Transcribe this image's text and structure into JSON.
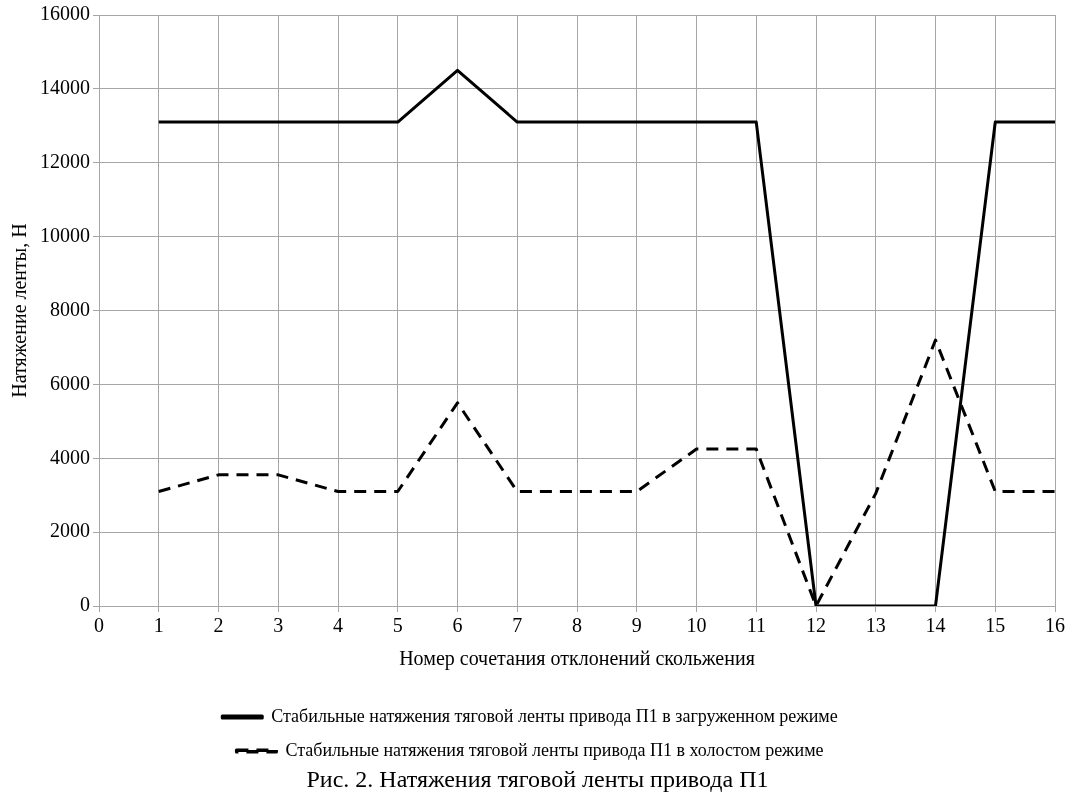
{
  "chart_data": {
    "type": "line",
    "title": "Рис. 2. Натяжения тяговой ленты привода П1",
    "xlabel": "Номер сочетания отклонений скольжения",
    "ylabel": "Натяжение ленты, Н",
    "x": [
      1,
      2,
      3,
      4,
      5,
      6,
      7,
      8,
      9,
      10,
      11,
      12,
      13,
      14,
      15,
      16
    ],
    "series": [
      {
        "name": "Стабильные натяжения тяговой ленты привода П1 в загруженном режиме",
        "color": "#000000",
        "line_style": "solid",
        "values": [
          13100,
          13100,
          13100,
          13100,
          13100,
          14500,
          13100,
          13100,
          13100,
          13100,
          13100,
          0,
          0,
          0,
          13100,
          13100
        ]
      },
      {
        "name": "Стабильные натяжения тяговой ленты привода П1 в холостом режиме",
        "color": "#000000",
        "line_style": "dashed",
        "values": [
          3100,
          3550,
          3550,
          3100,
          3100,
          5500,
          3100,
          3100,
          3100,
          4250,
          4250,
          0,
          3050,
          7200,
          3100,
          3100
        ]
      }
    ],
    "xlim": [
      0,
      16
    ],
    "xticks": [
      0,
      1,
      2,
      3,
      4,
      5,
      6,
      7,
      8,
      9,
      10,
      11,
      12,
      13,
      14,
      15,
      16
    ],
    "ylim": [
      0,
      16000
    ],
    "yticks": [
      0,
      2000,
      4000,
      6000,
      8000,
      10000,
      12000,
      14000,
      16000
    ],
    "grid": true,
    "legend": "bottom",
    "marker": "none"
  }
}
